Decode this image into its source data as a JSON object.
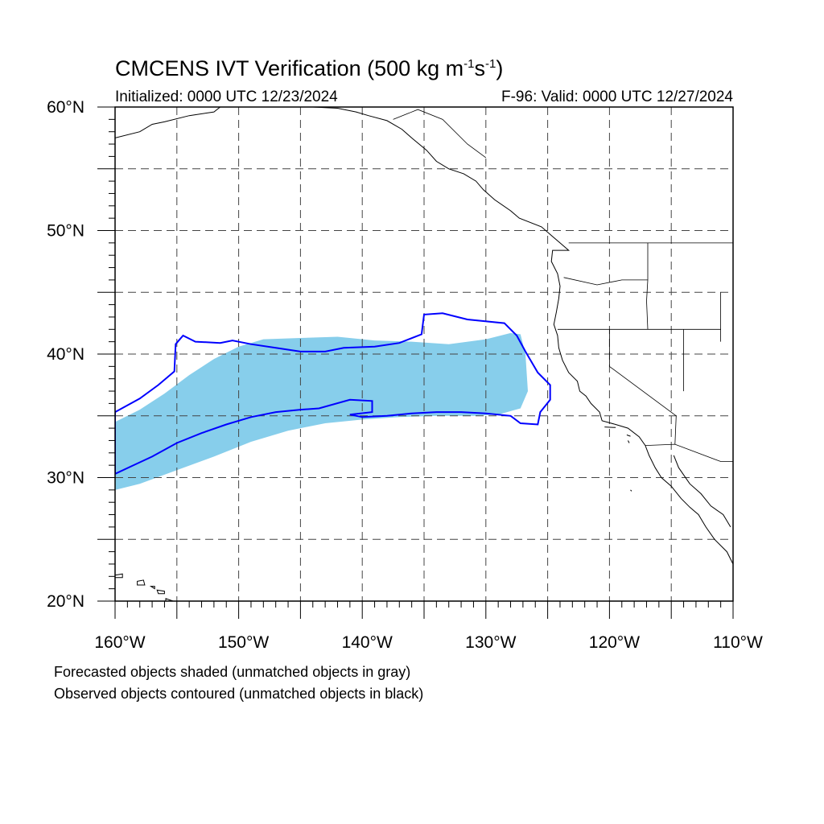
{
  "title": {
    "prefix": "CMCENS IVT Verification (500 kg m",
    "sup1": "-1",
    "mid": "s",
    "sup2": "-1",
    "suffix": ")"
  },
  "init_label": "Initialized: 0000 UTC 12/23/2024",
  "valid_label": "F-96: Valid: 0000 UTC 12/27/2024",
  "footnotes": [
    "Forecasted objects shaded (unmatched objects in gray)",
    "Observed objects contoured (unmatched objects in black)"
  ],
  "map": {
    "lon_range": [
      -160,
      -110
    ],
    "lat_range": [
      20,
      60
    ],
    "lat_ticks": [
      {
        "value": 60,
        "label": "60°N"
      },
      {
        "value": 50,
        "label": "50°N"
      },
      {
        "value": 40,
        "label": "40°N"
      },
      {
        "value": 30,
        "label": "30°N"
      },
      {
        "value": 20,
        "label": "20°N"
      }
    ],
    "lon_ticks": [
      {
        "value": -160,
        "label": "160°W"
      },
      {
        "value": -150,
        "label": "150°W"
      },
      {
        "value": -140,
        "label": "140°W"
      },
      {
        "value": -130,
        "label": "130°W"
      },
      {
        "value": -120,
        "label": "120°W"
      },
      {
        "value": -110,
        "label": "110°W"
      }
    ],
    "gridline_lons": [
      -155,
      -150,
      -145,
      -140,
      -135,
      -130,
      -125,
      -120,
      -115
    ],
    "gridline_lats": [
      25,
      30,
      35,
      40,
      45,
      50,
      55
    ],
    "colors": {
      "forecast_fill": "#87ceeb",
      "observed_contour": "#0000ff",
      "coastline": "#000000",
      "grid": "#444444"
    },
    "forecast_object": {
      "polygon": [
        [
          -160,
          29.0
        ],
        [
          -160,
          34.5
        ],
        [
          -158,
          35.5
        ],
        [
          -156,
          36.8
        ],
        [
          -154,
          38.3
        ],
        [
          -152,
          39.6
        ],
        [
          -150,
          40.6
        ],
        [
          -148,
          41.2
        ],
        [
          -145,
          41.3
        ],
        [
          -142,
          41.4
        ],
        [
          -139,
          41.1
        ],
        [
          -136,
          41.0
        ],
        [
          -133,
          40.8
        ],
        [
          -130,
          41.2
        ],
        [
          -128,
          41.7
        ],
        [
          -127.2,
          41.6
        ],
        [
          -126.8,
          40.0
        ],
        [
          -126.6,
          37.0
        ],
        [
          -127.2,
          35.6
        ],
        [
          -129,
          35.1
        ],
        [
          -131,
          35.0
        ],
        [
          -134,
          35.0
        ],
        [
          -137,
          34.9
        ],
        [
          -140,
          34.7
        ],
        [
          -143,
          34.4
        ],
        [
          -146,
          33.8
        ],
        [
          -149,
          32.9
        ],
        [
          -152,
          31.7
        ],
        [
          -155,
          30.6
        ],
        [
          -158,
          29.5
        ]
      ]
    },
    "observed_object": {
      "polygon": [
        [
          -160,
          35.3
        ],
        [
          -158,
          36.4
        ],
        [
          -156.5,
          37.5
        ],
        [
          -155.2,
          38.6
        ],
        [
          -155.1,
          40.8
        ],
        [
          -154.5,
          41.5
        ],
        [
          -153.5,
          41.0
        ],
        [
          -151.5,
          40.9
        ],
        [
          -150.5,
          41.1
        ],
        [
          -149,
          40.8
        ],
        [
          -147,
          40.5
        ],
        [
          -145,
          40.2
        ],
        [
          -143,
          40.2
        ],
        [
          -141.5,
          40.5
        ],
        [
          -139,
          40.6
        ],
        [
          -137,
          40.9
        ],
        [
          -135.2,
          41.6
        ],
        [
          -135,
          43.2
        ],
        [
          -133.5,
          43.3
        ],
        [
          -131.5,
          42.8
        ],
        [
          -128.5,
          42.5
        ],
        [
          -127.5,
          41.5
        ],
        [
          -126.8,
          40.2
        ],
        [
          -125.8,
          38.5
        ],
        [
          -124.8,
          37.5
        ],
        [
          -124.8,
          36.3
        ],
        [
          -125.6,
          35.3
        ],
        [
          -125.8,
          34.3
        ],
        [
          -127.2,
          34.4
        ],
        [
          -128.0,
          35.0
        ],
        [
          -130,
          35.2
        ],
        [
          -132,
          35.3
        ],
        [
          -134,
          35.3
        ],
        [
          -136,
          35.2
        ],
        [
          -138,
          35.0
        ],
        [
          -140,
          34.9
        ],
        [
          -141,
          35.1
        ],
        [
          -139.2,
          35.3
        ],
        [
          -139.2,
          36.2
        ],
        [
          -141.0,
          36.3
        ],
        [
          -143.5,
          35.6
        ],
        [
          -145,
          35.5
        ],
        [
          -147,
          35.3
        ],
        [
          -149,
          34.9
        ],
        [
          -151,
          34.3
        ],
        [
          -153,
          33.6
        ],
        [
          -155,
          32.8
        ],
        [
          -157,
          31.7
        ],
        [
          -158.5,
          31.0
        ],
        [
          -160,
          30.3
        ]
      ]
    },
    "coastline": [
      [
        -160,
        57.5
      ],
      [
        -158,
        58.0
      ],
      [
        -157,
        58.6
      ],
      [
        -156,
        58.8
      ],
      [
        -154,
        59.3
      ],
      [
        -152,
        59.6
      ],
      [
        -151.5,
        60
      ],
      [
        -149,
        60
      ],
      [
        -148,
        60
      ],
      [
        -146,
        60
      ],
      [
        -144,
        60
      ],
      [
        -142,
        59.9
      ],
      [
        -140.5,
        59.6
      ],
      [
        -139.5,
        59.3
      ],
      [
        -138,
        58.9
      ],
      [
        -136.8,
        58.2
      ],
      [
        -136,
        57.5
      ],
      [
        -134.8,
        56.5
      ],
      [
        -134.0,
        55.6
      ],
      [
        -133.0,
        55.0
      ],
      [
        -131.8,
        54.6
      ],
      [
        -130.8,
        54.0
      ],
      [
        -130.2,
        53.3
      ],
      [
        -129.3,
        52.5
      ],
      [
        -128.0,
        51.6
      ],
      [
        -127.3,
        51.0
      ],
      [
        -125.5,
        50.3
      ],
      [
        -124.7,
        49.6
      ],
      [
        -124.0,
        49.0
      ],
      [
        -123.3,
        48.4
      ],
      [
        -124.6,
        48.4
      ],
      [
        -124.7,
        47.5
      ],
      [
        -124.2,
        46.5
      ],
      [
        -124.0,
        45.5
      ],
      [
        -124.1,
        44.5
      ],
      [
        -124.3,
        43.4
      ],
      [
        -124.5,
        42.4
      ],
      [
        -124.2,
        41.5
      ],
      [
        -124.1,
        40.5
      ],
      [
        -123.8,
        39.5
      ],
      [
        -123.3,
        38.5
      ],
      [
        -122.6,
        37.8
      ],
      [
        -122.4,
        37.0
      ],
      [
        -121.9,
        36.6
      ],
      [
        -121.5,
        36.0
      ],
      [
        -120.8,
        35.3
      ],
      [
        -120.6,
        34.6
      ],
      [
        -119.5,
        34.3
      ],
      [
        -118.5,
        34.0
      ],
      [
        -117.6,
        33.3
      ],
      [
        -117.1,
        32.6
      ],
      [
        -116.8,
        31.8
      ],
      [
        -116.3,
        30.8
      ],
      [
        -115.8,
        30.0
      ],
      [
        -115.0,
        29.3
      ],
      [
        -114.2,
        28.3
      ],
      [
        -113.5,
        27.6
      ],
      [
        -112.8,
        27.0
      ],
      [
        -112.2,
        26.0
      ],
      [
        -111.5,
        25.0
      ],
      [
        -110.5,
        24.0
      ],
      [
        -110,
        23.0
      ]
    ],
    "gulf_coast": [
      [
        -114.8,
        31.8
      ],
      [
        -114.4,
        30.8
      ],
      [
        -113.5,
        29.5
      ],
      [
        -112.6,
        28.7
      ],
      [
        -111.8,
        27.7
      ],
      [
        -110.8,
        27.0
      ],
      [
        -110.2,
        26.0
      ]
    ],
    "borders": [
      [
        [
          -123.3,
          49.0
        ],
        [
          -110,
          49.0
        ]
      ],
      [
        [
          -124.2,
          42.0
        ],
        [
          -111.0,
          42.0
        ]
      ],
      [
        [
          -120,
          42.0
        ],
        [
          -120,
          39.0
        ],
        [
          -114.6,
          35.0
        ],
        [
          -114.7,
          32.7
        ]
      ],
      [
        [
          -117.1,
          32.6
        ],
        [
          -114.7,
          32.7
        ],
        [
          -111,
          31.3
        ],
        [
          -110,
          31.3
        ]
      ],
      [
        [
          -116.9,
          49.0
        ],
        [
          -116.9,
          46.0
        ],
        [
          -117.0,
          44.3
        ],
        [
          -116.9,
          42.0
        ]
      ],
      [
        [
          -114.0,
          42.0
        ],
        [
          -114.0,
          37.0
        ]
      ],
      [
        [
          -111.0,
          45.0
        ],
        [
          -111.0,
          41.0
        ]
      ],
      [
        [
          -123.7,
          46.2
        ],
        [
          -121.0,
          45.6
        ],
        [
          -119.0,
          46.0
        ],
        [
          -116.9,
          46.0
        ]
      ],
      [
        [
          -137.5,
          59.0
        ],
        [
          -135.5,
          59.8
        ],
        [
          -133.5,
          59.0
        ],
        [
          -131.5,
          57.0
        ],
        [
          -130.0,
          55.9
        ]
      ]
    ],
    "hawaii_islands": [
      [
        [
          -160,
          22.1
        ],
        [
          -159.4,
          22.2
        ],
        [
          -159.4,
          21.9
        ],
        [
          -160,
          21.9
        ]
      ],
      [
        [
          -158.2,
          21.6
        ],
        [
          -157.7,
          21.7
        ],
        [
          -157.6,
          21.3
        ],
        [
          -158.2,
          21.3
        ]
      ],
      [
        [
          -157.1,
          21.2
        ],
        [
          -156.8,
          21.2
        ],
        [
          -156.8,
          21.0
        ]
      ],
      [
        [
          -156.6,
          20.9
        ],
        [
          -156.0,
          20.8
        ],
        [
          -156.0,
          20.6
        ],
        [
          -156.5,
          20.6
        ]
      ],
      [
        [
          -155.9,
          20.2
        ],
        [
          -155.0,
          19.9
        ],
        [
          -154.9,
          19.5
        ],
        [
          -155.5,
          19.0
        ],
        [
          -155.9,
          19.5
        ]
      ]
    ],
    "channel_islands": [
      [
        [
          -120.4,
          34.1
        ],
        [
          -119.5,
          34.05
        ]
      ],
      [
        [
          -118.6,
          33.45
        ],
        [
          -118.3,
          33.35
        ]
      ],
      [
        [
          -118.5,
          33.0
        ],
        [
          -118.4,
          32.8
        ]
      ],
      [
        [
          -118.3,
          29.0
        ],
        [
          -118.2,
          28.9
        ]
      ]
    ]
  }
}
